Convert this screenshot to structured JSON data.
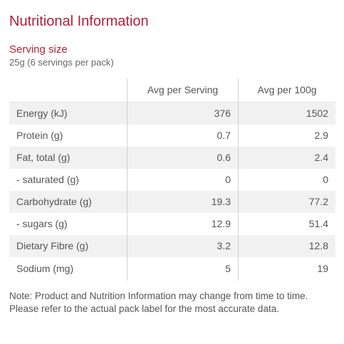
{
  "title": "Nutritional Information",
  "serving": {
    "heading": "Serving size",
    "value": "25g (6 servings per pack)"
  },
  "table": {
    "headers": {
      "label": "",
      "per_serving": "Avg per Serving",
      "per_100g": "Avg per 100g"
    },
    "rows": [
      {
        "label": "Energy (kJ)",
        "per_serving": "376",
        "per_100g": "1502"
      },
      {
        "label": "Protein (g)",
        "per_serving": "0.7",
        "per_100g": "2.9"
      },
      {
        "label": "Fat, total (g)",
        "per_serving": "0.6",
        "per_100g": "2.4"
      },
      {
        "label": "- saturated (g)",
        "per_serving": "0",
        "per_100g": "0"
      },
      {
        "label": "Carbohydrate (g)",
        "per_serving": "19.3",
        "per_100g": "77.2"
      },
      {
        "label": "- sugars (g)",
        "per_serving": "12.9",
        "per_100g": "51.4"
      },
      {
        "label": "Dietary Fibre (g)",
        "per_serving": "3.2",
        "per_100g": "12.8"
      },
      {
        "label": "Sodium (mg)",
        "per_serving": "5",
        "per_100g": "19"
      }
    ]
  },
  "note": "Note: Product and Nutrition Information may change from time to time. Please refer to the actual pack label for the most accurate data.",
  "colors": {
    "accent": "#b21f3a",
    "text": "#555555",
    "row_stripe": "#f1f1f1"
  }
}
